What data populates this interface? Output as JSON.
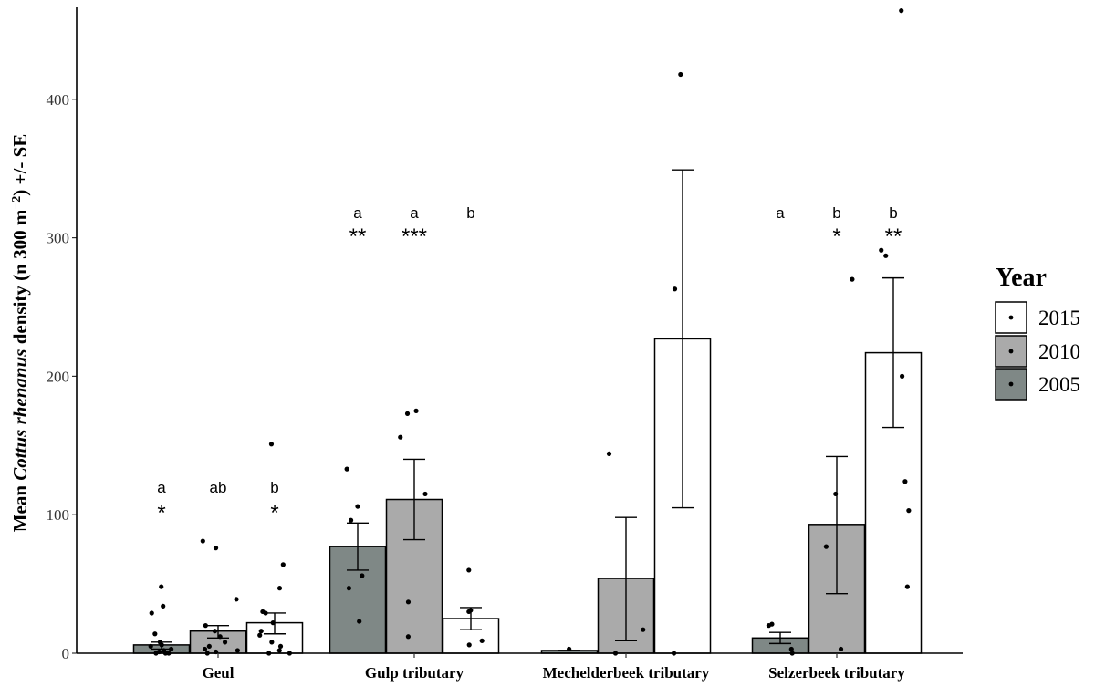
{
  "chart_data": {
    "type": "bar",
    "ylabel_parts": {
      "pre": "Mean ",
      "species": "Cottus rhenanus",
      "mid": " density (n 300 m",
      "sup": "−2",
      "post": ") +/- SE"
    },
    "xlabel": "",
    "ylim": [
      0,
      460
    ],
    "yticks": [
      0,
      100,
      200,
      300,
      400
    ],
    "categories": [
      "Geul",
      "Gulp tributary",
      "Mechelderbeek tributary",
      "Selzerbeek tributary"
    ],
    "legend": {
      "title": "Year",
      "position": "right",
      "entries": [
        "2015",
        "2010",
        "2005"
      ]
    },
    "colors": {
      "2005": "#7f8886",
      "2010": "#aaaaaa",
      "2015": "#ffffff"
    },
    "series": [
      {
        "name": "2005",
        "values": [
          6,
          77,
          2,
          11
        ],
        "se_low": [
          3,
          60,
          2,
          7
        ],
        "se_high": [
          8,
          94,
          2,
          15
        ],
        "letters": [
          "a",
          "a",
          "",
          "a"
        ],
        "stars": [
          "*",
          "**",
          "",
          ""
        ],
        "points": [
          [
            48,
            34,
            29,
            14,
            8,
            6,
            5,
            3,
            2,
            1,
            0,
            0,
            0
          ],
          [
            133,
            106,
            96,
            56,
            47,
            23
          ],
          [
            3
          ],
          [
            21,
            20,
            3,
            0
          ]
        ]
      },
      {
        "name": "2010",
        "values": [
          16,
          111,
          54,
          93
        ],
        "se_low": [
          11,
          82,
          9,
          43
        ],
        "se_high": [
          20,
          140,
          98,
          142
        ],
        "letters": [
          "ab",
          "a",
          "",
          "b"
        ],
        "stars": [
          "",
          "***",
          "",
          "*"
        ],
        "points": [
          [
            81,
            76,
            39,
            20,
            16,
            12,
            8,
            5,
            3,
            2,
            1,
            0
          ],
          [
            175,
            173,
            156,
            115,
            37,
            12
          ],
          [
            144,
            17,
            0
          ],
          [
            270,
            115,
            77,
            3
          ]
        ]
      },
      {
        "name": "2015",
        "values": [
          22,
          25,
          227,
          217
        ],
        "se_low": [
          14,
          17,
          105,
          163
        ],
        "se_high": [
          29,
          33,
          349,
          271
        ],
        "letters": [
          "b",
          "b",
          "",
          "b"
        ],
        "stars": [
          "*",
          "",
          "",
          "**"
        ],
        "points": [
          [
            151,
            64,
            47,
            30,
            29,
            22,
            16,
            13,
            8,
            5,
            2,
            0,
            0
          ],
          [
            60,
            31,
            30,
            9,
            6
          ],
          [
            418,
            263,
            0
          ],
          [
            464,
            291,
            287,
            200,
            124,
            103,
            48
          ]
        ]
      }
    ]
  }
}
